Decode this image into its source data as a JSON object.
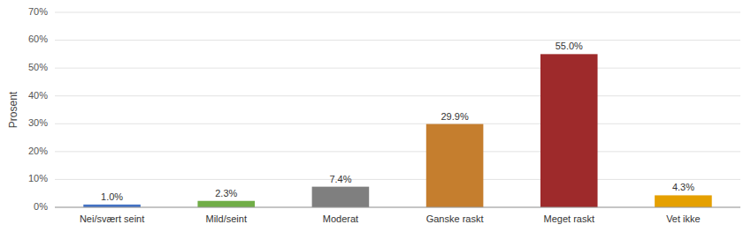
{
  "chart_data": {
    "type": "bar",
    "categories": [
      "Nei/svært seint",
      "Mild/seint",
      "Moderat",
      "Ganske raskt",
      "Meget raskt",
      "Vet ikke"
    ],
    "values": [
      1.0,
      2.3,
      7.4,
      29.9,
      55.0,
      4.3
    ],
    "value_labels": [
      "1.0%",
      "2.3%",
      "7.4%",
      "29.9%",
      "55.0%",
      "4.3%"
    ],
    "colors": [
      "#4472c4",
      "#70ad47",
      "#7f7f7f",
      "#c57e2e",
      "#9e2a2b",
      "#e5a000"
    ],
    "ylabel": "Prosent",
    "ylim": [
      0,
      70
    ],
    "yticks": [
      {
        "value": 0,
        "label": "0%"
      },
      {
        "value": 10,
        "label": "10%"
      },
      {
        "value": 20,
        "label": "20%"
      },
      {
        "value": 30,
        "label": "30%"
      },
      {
        "value": 40,
        "label": "40%"
      },
      {
        "value": 50,
        "label": "50%"
      },
      {
        "value": 60,
        "label": "60%"
      },
      {
        "value": 70,
        "label": "70%"
      }
    ],
    "grid": true,
    "data_labels": true
  }
}
